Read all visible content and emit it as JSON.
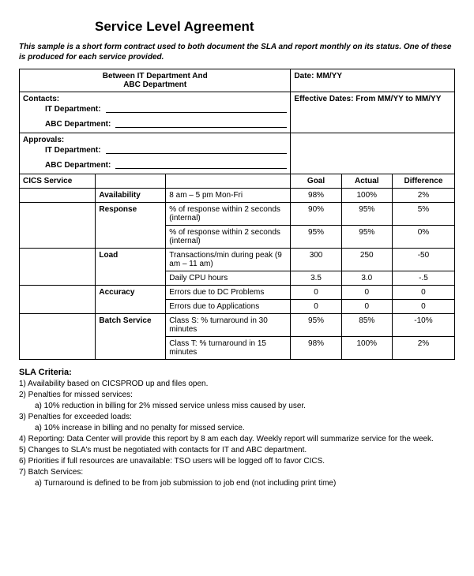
{
  "title": "Service Level Agreement",
  "intro": "This sample is a short form contract used to both document the SLA and report monthly on its status. One of these is produced for each service provided.",
  "header": {
    "between_line1": "Between IT Department And",
    "between_line2": "ABC Department",
    "date_label": "Date: MM/YY",
    "contacts_heading": "Contacts:",
    "it_dept": "IT Department:",
    "abc_dept": "ABC Department:",
    "effective_label": "Effective Dates: From MM/YY to MM/YY",
    "approvals_heading": "Approvals:"
  },
  "service_name": "CICS Service",
  "col_headers": {
    "goal": "Goal",
    "actual": "Actual",
    "difference": "Difference"
  },
  "metrics": [
    {
      "group": "Availability",
      "rows": [
        {
          "desc": "8 am – 5 pm Mon-Fri",
          "goal": "98%",
          "actual": "100%",
          "diff": "2%"
        }
      ]
    },
    {
      "group": "Response",
      "rows": [
        {
          "desc": "% of response within 2 seconds (internal)",
          "goal": "90%",
          "actual": "95%",
          "diff": "5%"
        },
        {
          "desc": "% of response within 2 seconds (internal)",
          "goal": "95%",
          "actual": "95%",
          "diff": "0%"
        }
      ]
    },
    {
      "group": "Load",
      "rows": [
        {
          "desc": "Transactions/min during peak (9 am – 11 am)",
          "goal": "300",
          "actual": "250",
          "diff": "-50"
        },
        {
          "desc": "Daily CPU hours",
          "goal": "3.5",
          "actual": "3.0",
          "diff": "-.5"
        }
      ]
    },
    {
      "group": "Accuracy",
      "rows": [
        {
          "desc": "Errors due to DC Problems",
          "goal": "0",
          "actual": "0",
          "diff": "0"
        },
        {
          "desc": "Errors due to Applications",
          "goal": "0",
          "actual": "0",
          "diff": "0"
        }
      ]
    },
    {
      "group": "Batch Service",
      "rows": [
        {
          "desc": "Class S: % turnaround in 30 minutes",
          "goal": "95%",
          "actual": "85%",
          "diff": "-10%"
        },
        {
          "desc": "Class T: % turnaround in 15 minutes",
          "goal": "98%",
          "actual": "100%",
          "diff": "2%"
        }
      ]
    }
  ],
  "criteria_title": "SLA Criteria:",
  "criteria": [
    {
      "n": "1)",
      "text": "Availability based on CICSPROD up and files open."
    },
    {
      "n": "2)",
      "text": "Penalties for missed services:",
      "sub": {
        "n": "a)",
        "text": "10% reduction in billing for 2% missed service unless miss caused by user."
      }
    },
    {
      "n": "3)",
      "text": "Penalties for exceeded loads:",
      "sub": {
        "n": "a)",
        "text": "10% increase in billing and no penalty for missed service."
      }
    },
    {
      "n": "4)",
      "text": "Reporting:  Data Center will provide this report by 8 am each day.  Weekly report will summarize service for the week."
    },
    {
      "n": "5)",
      "text": "Changes to SLA's must be negotiated with contacts for IT and ABC department."
    },
    {
      "n": "6)",
      "text": "Priorities if full resources are unavailable: TSO users will be logged off to favor CICS."
    },
    {
      "n": "7)",
      "text": "Batch Services:",
      "sub": {
        "n": "a)",
        "text": "Turnaround is defined to be from job submission to job end (not including print time)"
      }
    }
  ]
}
